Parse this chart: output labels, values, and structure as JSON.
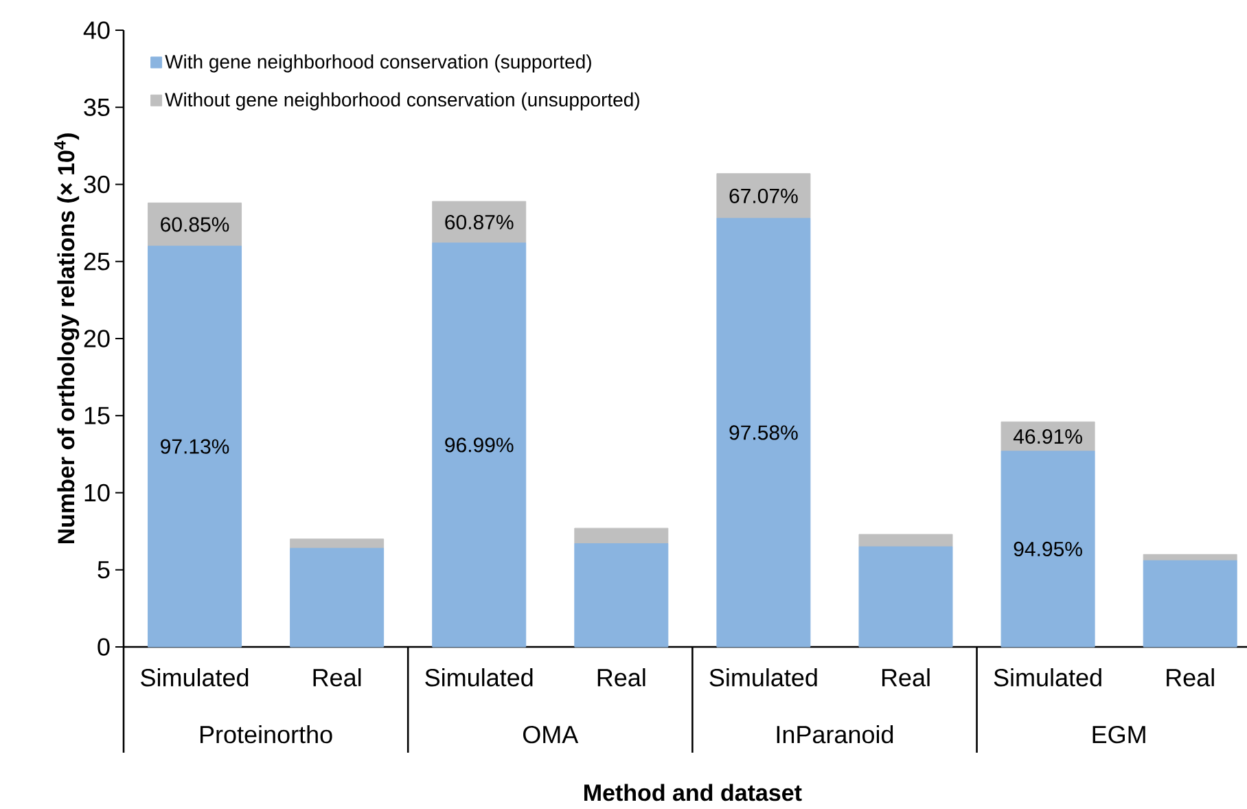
{
  "chart_data": {
    "type": "bar",
    "stacked": true,
    "categories": [
      "Simulated",
      "Real",
      "Simulated",
      "Real",
      "Simulated",
      "Real",
      "Simulated",
      "Real"
    ],
    "series": [
      {
        "name": "With gene neighborhood conservation (supported)",
        "color": "#8ab4e0",
        "values": [
          26.0,
          6.4,
          26.2,
          6.7,
          27.8,
          6.5,
          12.7,
          5.6
        ]
      },
      {
        "name": "Without gene neighborhood conservation (unsupported)",
        "color": "#bfbfbf",
        "values": [
          2.8,
          0.6,
          2.7,
          1.0,
          2.9,
          0.8,
          1.9,
          0.4
        ]
      }
    ],
    "ylim": [
      0,
      40
    ],
    "yticks": [
      0,
      5,
      10,
      15,
      20,
      25,
      30,
      35,
      40
    ],
    "xlabel": "Method and dataset",
    "ylabel": "Number of orthology relations (× 10$^{4}$)",
    "annotations": [
      "Proteinortho",
      "OMA",
      "InParanoid",
      "EGM",
      "97.13%",
      "60.85%",
      "96.99%",
      "60.87%",
      "97.58%",
      "67.07%",
      "94.95%",
      "46.91%"
    ],
    "legend": "top left"
  }
}
